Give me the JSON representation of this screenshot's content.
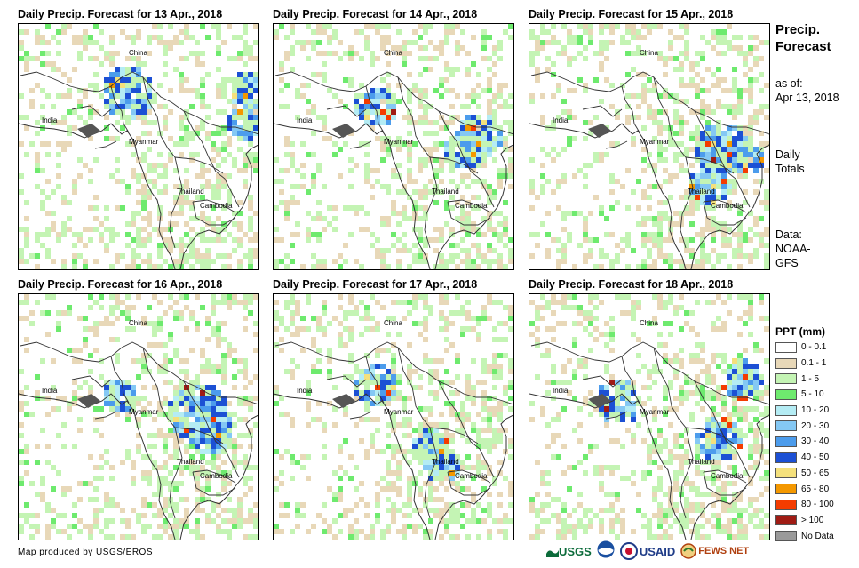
{
  "panels": [
    {
      "title": "Daily Precip. Forecast for 13 Apr., 2018",
      "labels": {
        "china": "China",
        "india": "India",
        "myanmar": "Myanmar",
        "thailand": "Thailand",
        "cambodia": "Cambodia"
      }
    },
    {
      "title": "Daily Precip. Forecast for 14 Apr., 2018",
      "labels": {
        "china": "China",
        "india": "India",
        "myanmar": "Myanmar",
        "thailand": "Thailand",
        "cambodia": "Cambodia"
      }
    },
    {
      "title": "Daily Precip. Forecast for 15 Apr., 2018",
      "labels": {
        "china": "China",
        "india": "India",
        "myanmar": "Myanmar",
        "thailand": "Thailand",
        "cambodia": "Cambodia"
      }
    },
    {
      "title": "Daily Precip. Forecast for 16 Apr., 2018",
      "labels": {
        "china": "China",
        "india": "India",
        "myanmar": "Myanmar",
        "thailand": "Thailand",
        "cambodia": "Cambodia"
      }
    },
    {
      "title": "Daily Precip. Forecast for 17 Apr., 2018",
      "labels": {
        "china": "China",
        "india": "India",
        "myanmar": "Myanmar",
        "thailand": "Thailand",
        "cambodia": "Cambodia"
      }
    },
    {
      "title": "Daily Precip. Forecast for 18 Apr., 2018",
      "labels": {
        "china": "China",
        "india": "India",
        "myanmar": "Myanmar",
        "thailand": "Thailand",
        "cambodia": "Cambodia"
      }
    }
  ],
  "sidebar": {
    "title_line1": "Precip.",
    "title_line2": "Forecast",
    "asof_line1": "as of:",
    "asof_line2": "Apr 13, 2018",
    "totals_line1": "Daily",
    "totals_line2": "Totals",
    "data_line1": "Data:",
    "data_line2": "NOAA-",
    "data_line3": "GFS"
  },
  "legend": {
    "title": "PPT (mm)",
    "items": [
      {
        "label": "0 - 0.1",
        "color": "#ffffff"
      },
      {
        "label": "0.1 - 1",
        "color": "#e8d8b8"
      },
      {
        "label": "1 - 5",
        "color": "#c4f4b4"
      },
      {
        "label": "5 - 10",
        "color": "#6eea6e"
      },
      {
        "label": "10 - 20",
        "color": "#b4ecf4"
      },
      {
        "label": "20 - 30",
        "color": "#84c8f4"
      },
      {
        "label": "30 - 40",
        "color": "#4c9cec"
      },
      {
        "label": "40 - 50",
        "color": "#1c50d4"
      },
      {
        "label": "50 - 65",
        "color": "#f4e07c"
      },
      {
        "label": "65 - 80",
        "color": "#f49800"
      },
      {
        "label": "80 - 100",
        "color": "#f43c00"
      },
      {
        "label": "> 100",
        "color": "#a01c14"
      },
      {
        "label": "No Data",
        "color": "#9a9a9a"
      }
    ]
  },
  "footer": {
    "credit": "Map produced by USGS/EROS"
  },
  "logos": {
    "usgs": "USGS",
    "usaid": "USAID",
    "fewsnet": "FEWS NET"
  }
}
